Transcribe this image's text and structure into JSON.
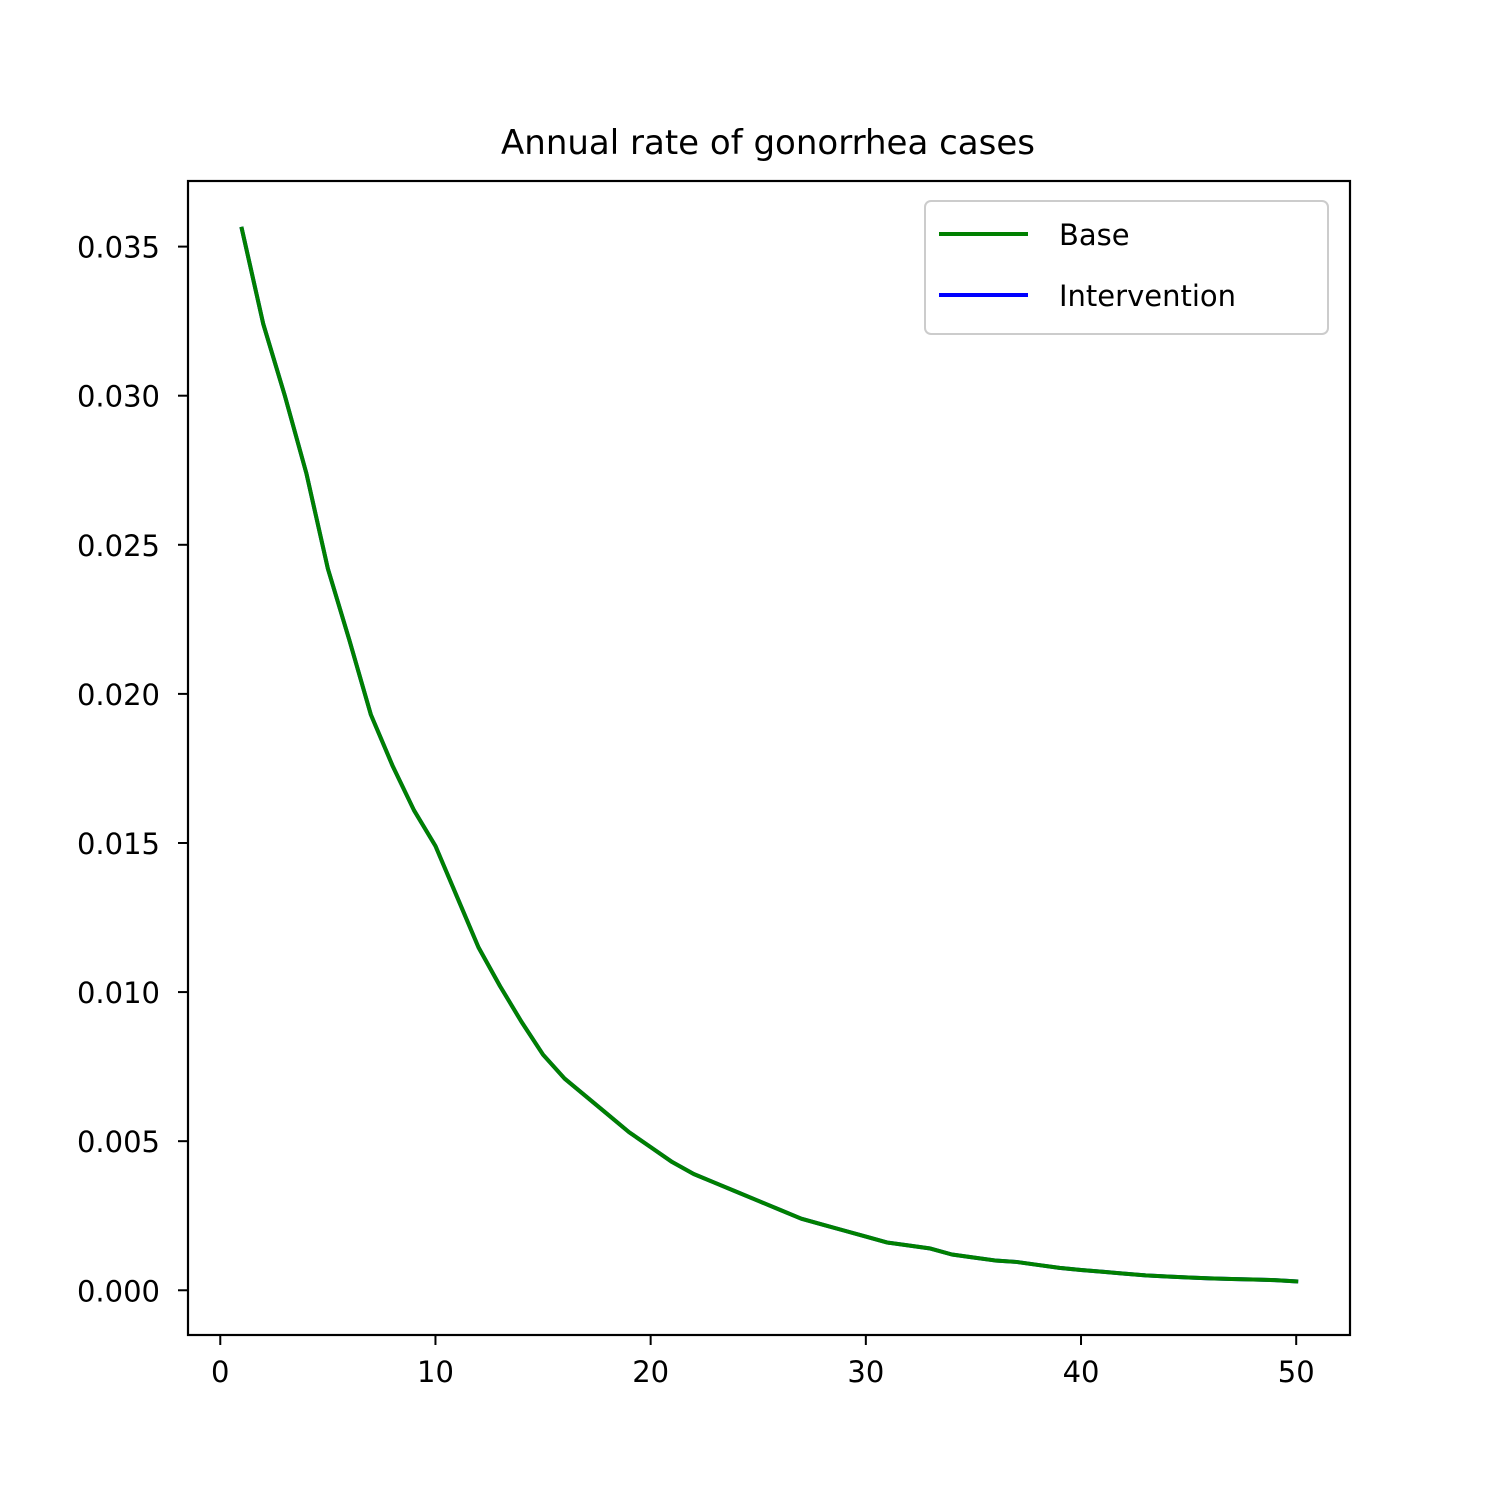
{
  "chart_data": {
    "type": "line",
    "title": "Annual rate of gonorrhea cases",
    "xlabel": "",
    "ylabel": "",
    "xlim": [
      -1.5,
      52.5
    ],
    "ylim": [
      -0.0015,
      0.0372
    ],
    "xticks": [
      0,
      10,
      20,
      30,
      40,
      50
    ],
    "xtick_labels": [
      "0",
      "10",
      "20",
      "30",
      "40",
      "50"
    ],
    "yticks": [
      0.0,
      0.005,
      0.01,
      0.015,
      0.02,
      0.025,
      0.03,
      0.035
    ],
    "ytick_labels": [
      "0.000",
      "0.005",
      "0.010",
      "0.015",
      "0.020",
      "0.025",
      "0.030",
      "0.035"
    ],
    "grid": false,
    "legend_position": "top-right",
    "x": [
      1,
      2,
      3,
      4,
      5,
      6,
      7,
      8,
      9,
      10,
      11,
      12,
      13,
      14,
      15,
      16,
      17,
      18,
      19,
      20,
      21,
      22,
      23,
      24,
      25,
      26,
      27,
      28,
      29,
      30,
      31,
      32,
      33,
      34,
      35,
      36,
      37,
      38,
      39,
      40,
      41,
      42,
      43,
      44,
      45,
      46,
      47,
      48,
      49,
      50
    ],
    "series": [
      {
        "name": "Base",
        "color": "#008000",
        "values": [
          0.0356,
          0.0324,
          0.03,
          0.0274,
          0.0242,
          0.0218,
          0.0193,
          0.0176,
          0.0161,
          0.0149,
          0.0132,
          0.0115,
          0.0102,
          0.009,
          0.0079,
          0.0071,
          0.0065,
          0.0059,
          0.0053,
          0.0048,
          0.0043,
          0.0039,
          0.0036,
          0.0033,
          0.003,
          0.0027,
          0.0024,
          0.0022,
          0.002,
          0.0018,
          0.0016,
          0.0015,
          0.0014,
          0.0012,
          0.0011,
          0.001,
          0.00095,
          0.00085,
          0.00075,
          0.00068,
          0.00062,
          0.00056,
          0.0005,
          0.00046,
          0.00043,
          0.0004,
          0.00038,
          0.00036,
          0.00034,
          0.0003
        ]
      },
      {
        "name": "Intervention",
        "color": "#0000ff",
        "values": [
          0.0356,
          0.0324,
          0.03,
          0.0274,
          0.0242,
          0.0218,
          0.0193,
          0.0176,
          0.0161,
          0.0149,
          0.0132,
          0.0115,
          0.0102,
          0.009,
          0.0079,
          0.0071,
          0.0065,
          0.0059,
          0.0053,
          0.0048,
          0.0043,
          0.0039,
          0.0036,
          0.0033,
          0.003,
          0.0027,
          0.0024,
          0.0022,
          0.002,
          0.0018,
          0.0016,
          0.0015,
          0.0014,
          0.0012,
          0.0011,
          0.001,
          0.00095,
          0.00085,
          0.00075,
          0.00068,
          0.00062,
          0.00056,
          0.0005,
          0.00046,
          0.00043,
          0.0004,
          0.00038,
          0.00036,
          0.00034,
          0.0003
        ]
      }
    ]
  }
}
